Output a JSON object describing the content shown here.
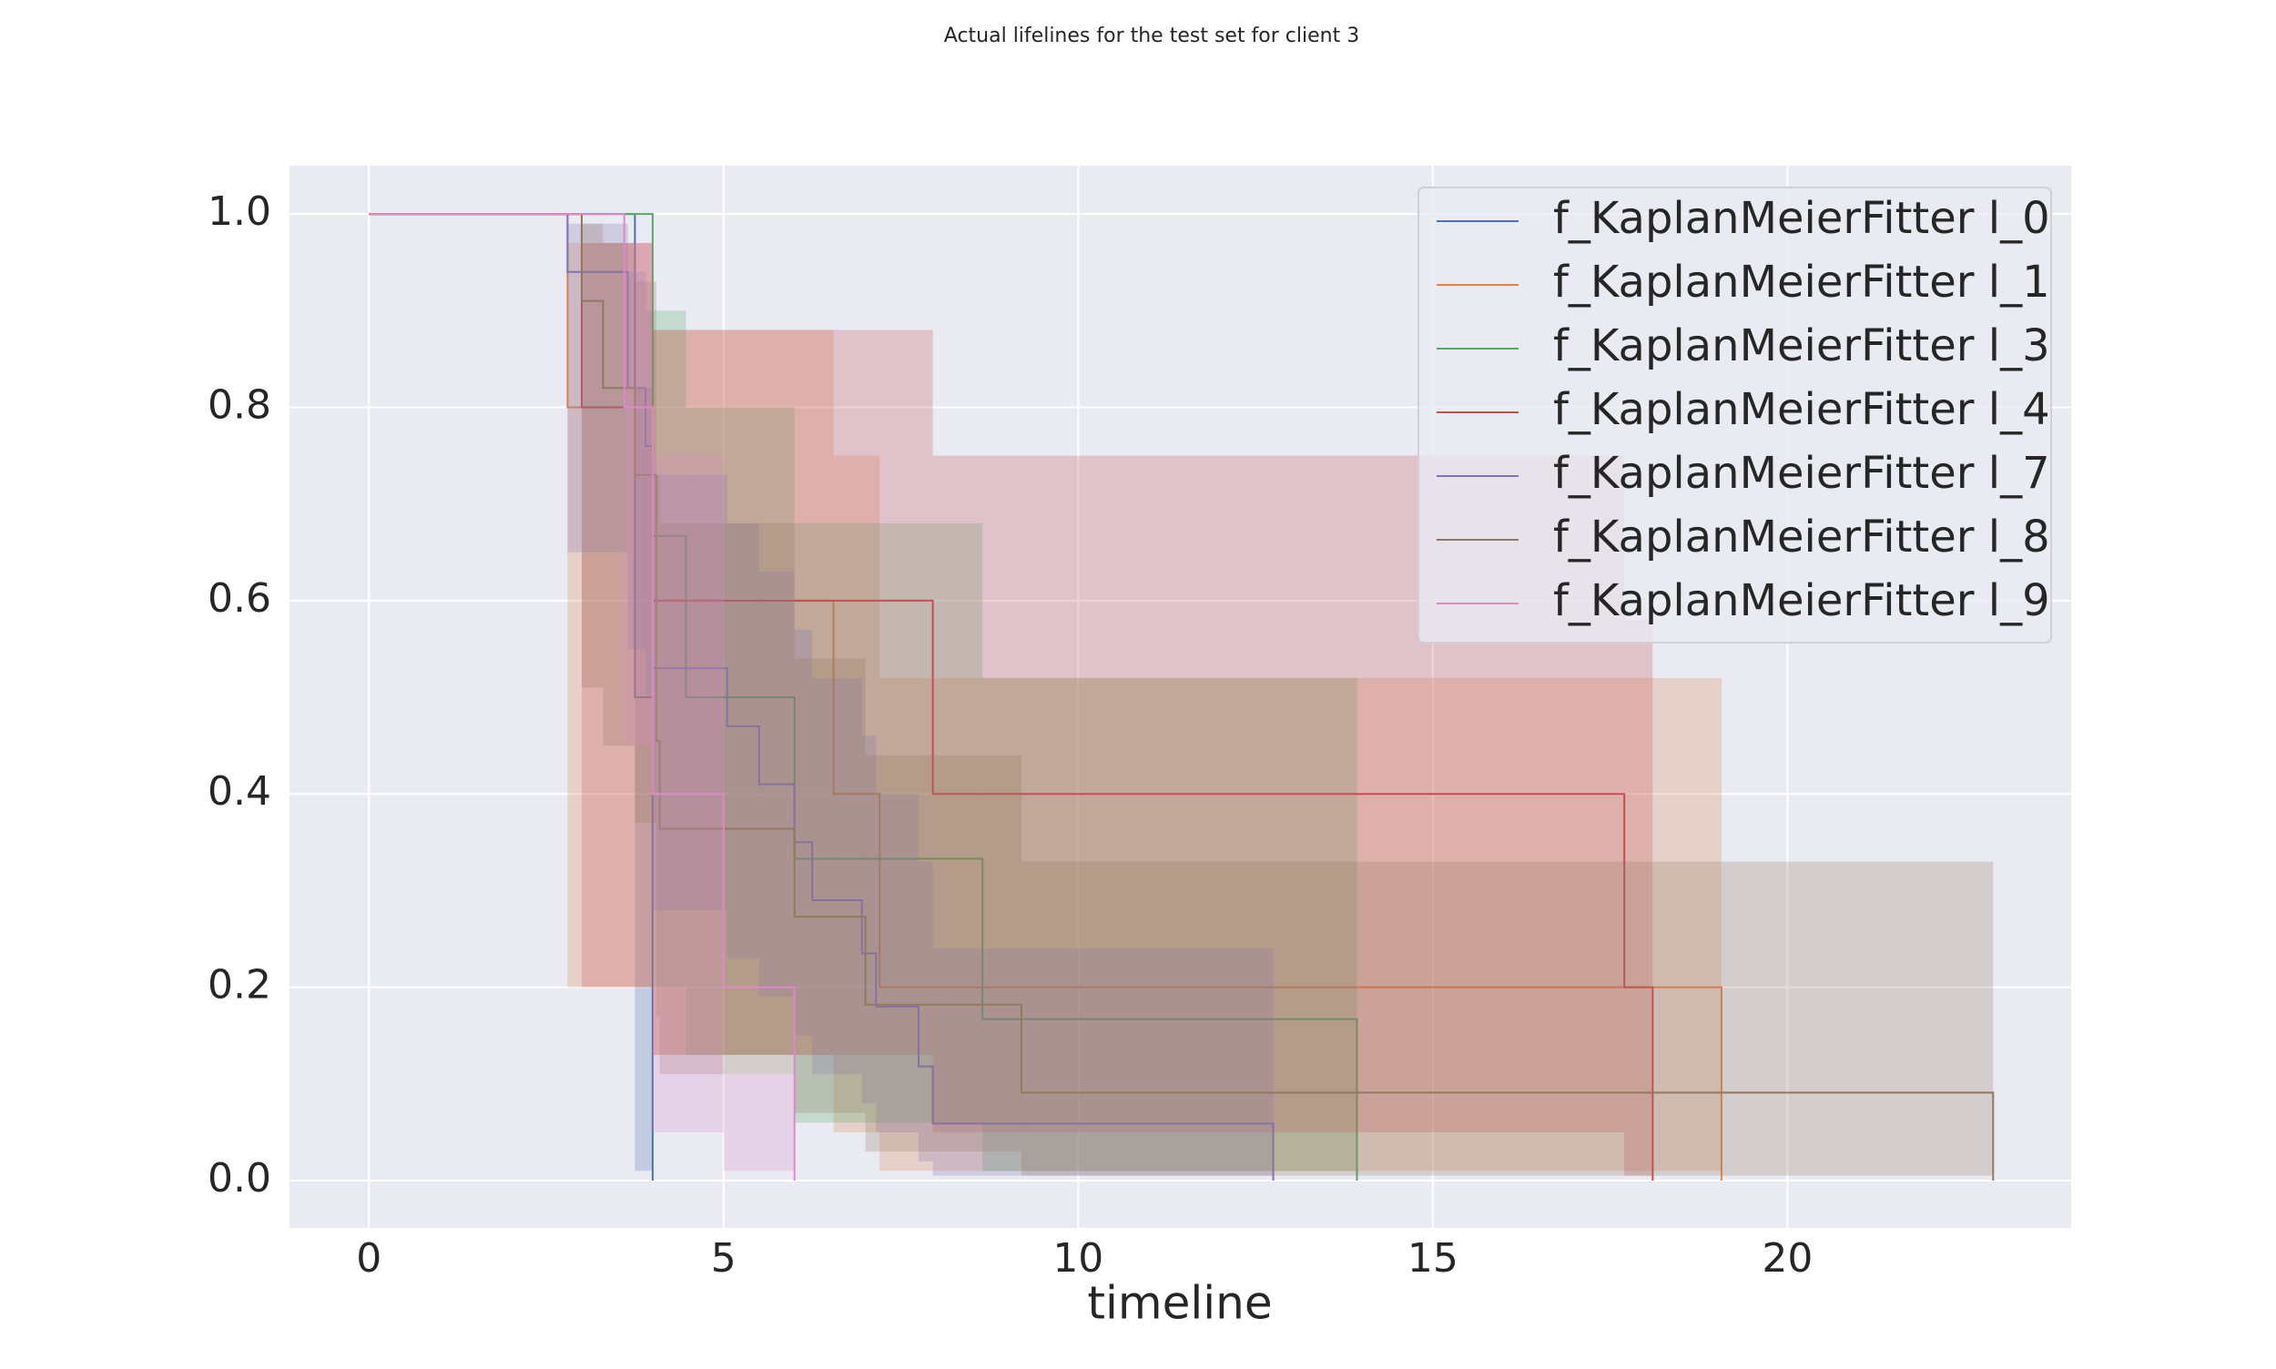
{
  "chart_data": {
    "type": "step",
    "title": "Actual lifelines for the test set for client 3",
    "xlabel": "timeline",
    "xlim": [
      -1.12,
      24.0
    ],
    "ylim": [
      -0.049,
      1.05
    ],
    "xticks": [
      0,
      5,
      10,
      15,
      20
    ],
    "yticks": [
      {
        "value": 0,
        "label": "0.0"
      },
      0.2,
      0.4,
      0.6,
      0.8,
      {
        "value": 1,
        "label": "1.0"
      }
    ],
    "grid": true,
    "legend": "upper right",
    "series": [
      {
        "name": "f_KaplanMeierFitter l_0",
        "color": "#4c72b0",
        "x": [
          0,
          3.75,
          4.0
        ],
        "values": [
          1.0,
          0.5,
          0.0
        ],
        "ci_lower": [
          1.0,
          0.01,
          0.0
        ],
        "ci_upper": [
          1.0,
          0.82,
          0.0
        ]
      },
      {
        "name": "f_KaplanMeierFitter l_1",
        "color": "#dd8452",
        "x": [
          0,
          2.8,
          4.0,
          6.55,
          7.2,
          19.07
        ],
        "values": [
          1.0,
          0.8,
          0.6,
          0.4,
          0.2,
          0.0
        ],
        "ci_lower": [
          1.0,
          0.2,
          0.13,
          0.05,
          0.01,
          0.0
        ],
        "ci_upper": [
          1.0,
          0.97,
          0.88,
          0.75,
          0.52,
          0.0
        ]
      },
      {
        "name": "f_KaplanMeierFitter l_3",
        "color": "#55a868",
        "x": [
          0,
          4.0,
          4.47,
          6.0,
          8.65,
          13.93
        ],
        "values": [
          1.0,
          0.667,
          0.5,
          0.333,
          0.167,
          0.0
        ],
        "ci_lower": [
          1.0,
          0.2,
          0.13,
          0.06,
          0.01,
          0.0
        ],
        "ci_upper": [
          1.0,
          0.9,
          0.8,
          0.68,
          0.52,
          0.0
        ]
      },
      {
        "name": "f_KaplanMeierFitter l_4",
        "color": "#c44e52",
        "x": [
          0,
          3.0,
          4.0,
          7.95,
          17.7,
          18.1
        ],
        "values": [
          1.0,
          0.8,
          0.6,
          0.4,
          0.2,
          0.0
        ],
        "ci_lower": [
          1.0,
          0.2,
          0.13,
          0.05,
          0.005,
          0.0
        ],
        "ci_upper": [
          1.0,
          0.97,
          0.88,
          0.75,
          0.58,
          0.0
        ]
      },
      {
        "name": "f_KaplanMeierFitter l_7",
        "color": "#8172b3",
        "x": [
          0,
          2.8,
          3.65,
          3.9,
          4.0,
          5.05,
          5.5,
          6.0,
          6.25,
          6.95,
          7.15,
          7.75,
          7.95,
          12.75
        ],
        "values": [
          1.0,
          0.94,
          0.82,
          0.76,
          0.53,
          0.47,
          0.41,
          0.35,
          0.29,
          0.235,
          0.18,
          0.118,
          0.059,
          0.0
        ],
        "ci_lower": [
          1.0,
          0.65,
          0.55,
          0.5,
          0.28,
          0.23,
          0.19,
          0.15,
          0.11,
          0.08,
          0.05,
          0.02,
          0.005,
          0.0
        ],
        "ci_upper": [
          1.0,
          0.99,
          0.94,
          0.9,
          0.73,
          0.68,
          0.63,
          0.57,
          0.52,
          0.46,
          0.4,
          0.33,
          0.24,
          0.0
        ]
      },
      {
        "name": "f_KaplanMeierFitter l_8",
        "color": "#937860",
        "x": [
          0,
          3.0,
          3.3,
          3.75,
          4.05,
          4.1,
          6.0,
          7.0,
          9.2,
          22.9
        ],
        "values": [
          1.0,
          0.91,
          0.82,
          0.73,
          0.455,
          0.364,
          0.273,
          0.182,
          0.091,
          0.0
        ],
        "ci_lower": [
          1.0,
          0.51,
          0.45,
          0.37,
          0.17,
          0.11,
          0.07,
          0.03,
          0.005,
          0.0
        ],
        "ci_upper": [
          1.0,
          0.99,
          0.97,
          0.93,
          0.73,
          0.68,
          0.54,
          0.44,
          0.33,
          0.0
        ]
      },
      {
        "name": "f_KaplanMeierFitter l_9",
        "color": "#da8bc3",
        "x": [
          0,
          3.6,
          4.0,
          5.0,
          6.0
        ],
        "values": [
          1.0,
          0.8,
          0.4,
          0.2,
          0.0
        ],
        "ci_lower": [
          1.0,
          0.45,
          0.05,
          0.01,
          0.0
        ],
        "ci_upper": [
          1.0,
          0.97,
          0.75,
          0.11,
          0.0
        ]
      }
    ]
  }
}
